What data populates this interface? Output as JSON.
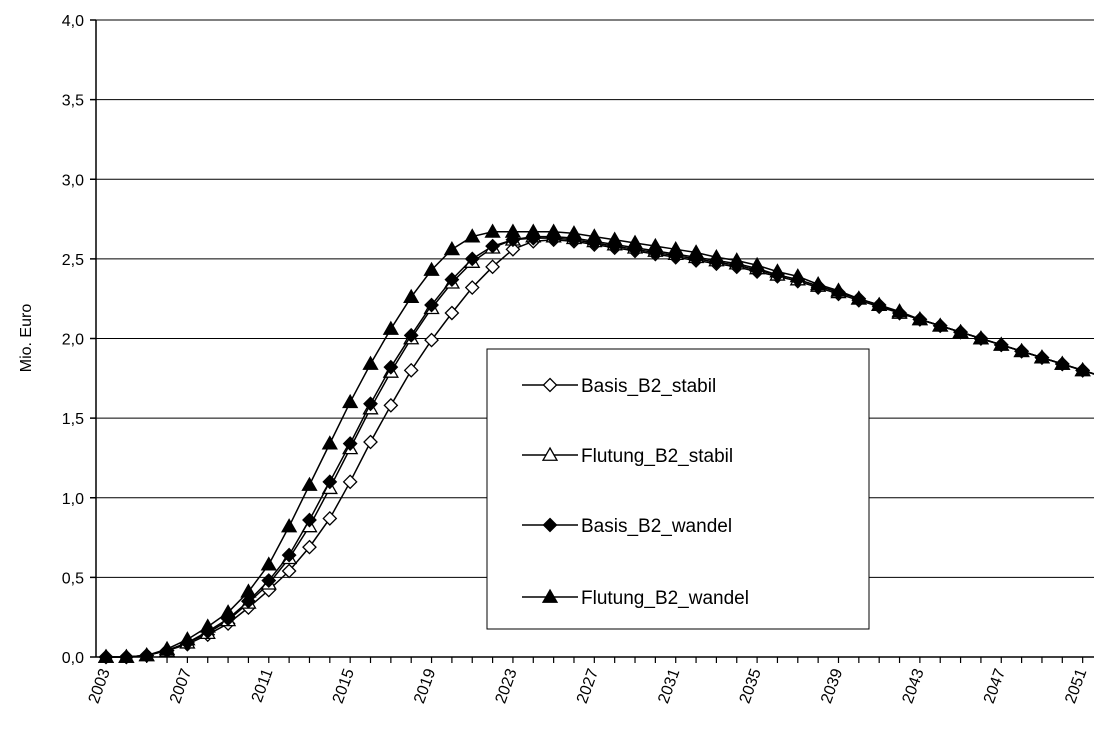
{
  "chart_data": {
    "type": "line",
    "title": "",
    "xlabel": "",
    "ylabel": "Mio. Euro",
    "xlim": [
      2003,
      2052
    ],
    "ylim": [
      0,
      4.0
    ],
    "y_ticks": [
      "0,0",
      "0,5",
      "1,0",
      "1,5",
      "2,0",
      "2,5",
      "3,0",
      "3,5",
      "4,0"
    ],
    "x_ticks": [
      "2003",
      "2007",
      "2011",
      "2015",
      "2019",
      "2023",
      "2027",
      "2031",
      "2035",
      "2039",
      "2043",
      "2047",
      "2051"
    ],
    "grid": "horizontal",
    "legend_position": "center-right",
    "x": [
      2003,
      2004,
      2005,
      2006,
      2007,
      2008,
      2009,
      2010,
      2011,
      2012,
      2013,
      2014,
      2015,
      2016,
      2017,
      2018,
      2019,
      2020,
      2021,
      2022,
      2023,
      2024,
      2025,
      2026,
      2027,
      2028,
      2029,
      2030,
      2031,
      2032,
      2033,
      2034,
      2035,
      2036,
      2037,
      2038,
      2039,
      2040,
      2041,
      2042,
      2043,
      2044,
      2045,
      2046,
      2047,
      2048,
      2049,
      2050,
      2051,
      2052
    ],
    "series": [
      {
        "name": "Basis_B2_stabil",
        "marker": "diamond-open",
        "values": [
          0.0,
          0.0,
          0.01,
          0.04,
          0.08,
          0.14,
          0.21,
          0.31,
          0.42,
          0.54,
          0.69,
          0.87,
          1.1,
          1.35,
          1.58,
          1.8,
          1.99,
          2.16,
          2.32,
          2.45,
          2.56,
          2.61,
          2.62,
          2.61,
          2.59,
          2.57,
          2.55,
          2.53,
          2.51,
          2.49,
          2.47,
          2.45,
          2.42,
          2.39,
          2.36,
          2.32,
          2.28,
          2.24,
          2.2,
          2.16,
          2.12,
          2.08,
          2.04,
          2.0,
          1.96,
          1.92,
          1.88,
          1.84,
          1.8,
          1.76
        ]
      },
      {
        "name": "Flutung_B2_stabil",
        "marker": "triangle-open",
        "values": [
          0.0,
          0.0,
          0.01,
          0.04,
          0.09,
          0.15,
          0.23,
          0.34,
          0.46,
          0.62,
          0.82,
          1.06,
          1.31,
          1.56,
          1.79,
          2.0,
          2.19,
          2.35,
          2.48,
          2.57,
          2.62,
          2.64,
          2.64,
          2.63,
          2.61,
          2.59,
          2.57,
          2.55,
          2.53,
          2.51,
          2.49,
          2.47,
          2.44,
          2.4,
          2.37,
          2.33,
          2.29,
          2.25,
          2.21,
          2.16,
          2.12,
          2.08,
          2.04,
          2.0,
          1.96,
          1.92,
          1.88,
          1.84,
          1.8,
          1.76
        ]
      },
      {
        "name": "Basis_B2_wandel",
        "marker": "diamond-filled",
        "values": [
          0.0,
          0.0,
          0.01,
          0.04,
          0.09,
          0.16,
          0.24,
          0.35,
          0.48,
          0.64,
          0.86,
          1.1,
          1.34,
          1.59,
          1.82,
          2.02,
          2.21,
          2.37,
          2.5,
          2.58,
          2.62,
          2.63,
          2.63,
          2.62,
          2.6,
          2.58,
          2.56,
          2.54,
          2.52,
          2.5,
          2.48,
          2.46,
          2.43,
          2.4,
          2.37,
          2.33,
          2.29,
          2.25,
          2.21,
          2.16,
          2.12,
          2.08,
          2.04,
          2.0,
          1.96,
          1.92,
          1.88,
          1.84,
          1.8,
          1.76
        ]
      },
      {
        "name": "Flutung_B2_wandel",
        "marker": "triangle-filled",
        "values": [
          0.0,
          0.0,
          0.01,
          0.05,
          0.11,
          0.19,
          0.28,
          0.41,
          0.58,
          0.82,
          1.08,
          1.34,
          1.6,
          1.84,
          2.06,
          2.26,
          2.43,
          2.56,
          2.64,
          2.67,
          2.67,
          2.67,
          2.67,
          2.66,
          2.64,
          2.62,
          2.6,
          2.58,
          2.56,
          2.54,
          2.51,
          2.49,
          2.46,
          2.42,
          2.39,
          2.34,
          2.3,
          2.25,
          2.21,
          2.17,
          2.12,
          2.08,
          2.04,
          2.0,
          1.96,
          1.92,
          1.88,
          1.84,
          1.8,
          1.76
        ]
      }
    ]
  }
}
